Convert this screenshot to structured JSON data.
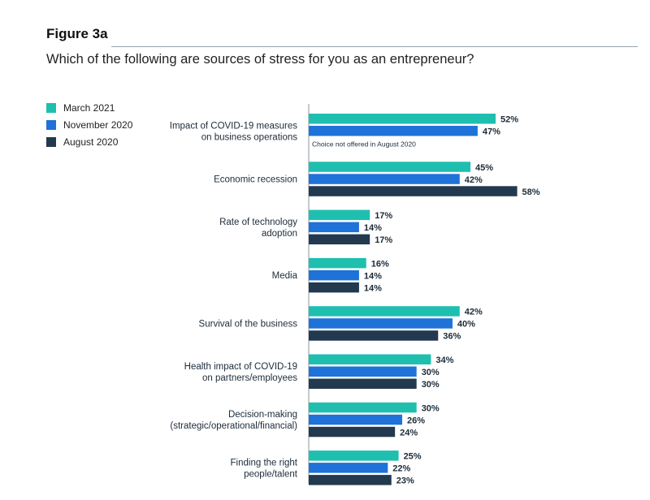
{
  "figure": {
    "label": "Figure 3a",
    "question": "Which of the following are sources of stress for you as an entrepreneur?"
  },
  "colors": {
    "march_2021": "#1fbfb0",
    "november_2020": "#1f72d8",
    "august_2020": "#23394f"
  },
  "chart_data": {
    "type": "bar",
    "orientation": "horizontal",
    "categories": [
      [
        "Impact of COVID-19 measures",
        "on business operations"
      ],
      [
        "Economic recession"
      ],
      [
        "Rate of technology",
        "adoption"
      ],
      [
        "Media"
      ],
      [
        "Survival of the business"
      ],
      [
        "Health impact of COVID-19",
        "on partners/employees"
      ],
      [
        "Decision-making",
        "(strategic/operational/financial)"
      ],
      [
        "Finding the right",
        "people/talent"
      ]
    ],
    "series": [
      {
        "name": "March 2021",
        "color": "#1fbfb0",
        "values": [
          52,
          45,
          17,
          16,
          42,
          34,
          30,
          25
        ]
      },
      {
        "name": "November 2020",
        "color": "#1f72d8",
        "values": [
          47,
          42,
          14,
          14,
          40,
          30,
          26,
          22
        ]
      },
      {
        "name": "August 2020",
        "color": "#23394f",
        "values": [
          null,
          58,
          17,
          14,
          36,
          30,
          24,
          23
        ]
      }
    ],
    "value_suffix": "%",
    "annotations": [
      {
        "category_index": 0,
        "series": "August 2020",
        "text": "Choice not offered in August 2020"
      }
    ],
    "legend_position": "top-left",
    "grid": false
  }
}
